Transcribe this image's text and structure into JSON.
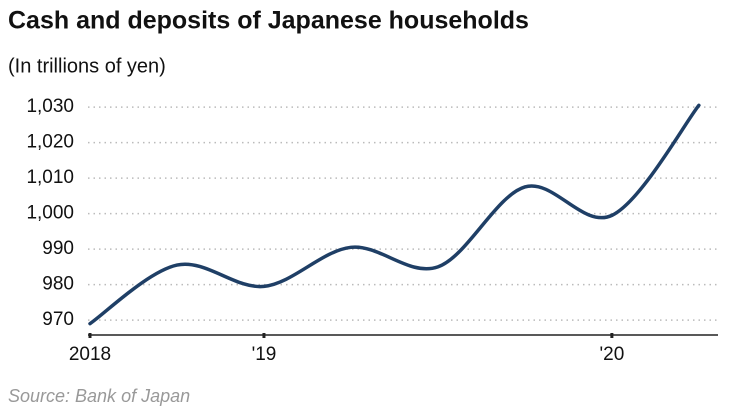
{
  "chart_data": {
    "type": "line",
    "title": "Cash and deposits of Japanese households",
    "subtitle": "(In trillions of yen)",
    "source": "Source: Bank of Japan",
    "x": [
      0,
      1,
      2,
      3,
      4,
      5,
      6,
      7
    ],
    "xlim": [
      0,
      7.22
    ],
    "xticks": [
      {
        "value": 0,
        "label": "2018"
      },
      {
        "value": 2,
        "label": "'19"
      },
      {
        "value": 6,
        "label": "'20"
      }
    ],
    "series": [
      {
        "name": "Cash and deposits",
        "color": "#1f3f66",
        "values": [
          969,
          985.5,
          979.5,
          990.5,
          985,
          1007.5,
          999.5,
          1030.5
        ]
      }
    ],
    "ylim": [
      965.8,
      1032
    ],
    "yticks": [
      970,
      980,
      990,
      {
        "value": 1000,
        "label": "1,000"
      },
      {
        "value": 1010,
        "label": "1,010"
      },
      {
        "value": 1020,
        "label": "1,020"
      },
      {
        "value": 1030,
        "label": "1,030"
      }
    ],
    "grid": true
  }
}
